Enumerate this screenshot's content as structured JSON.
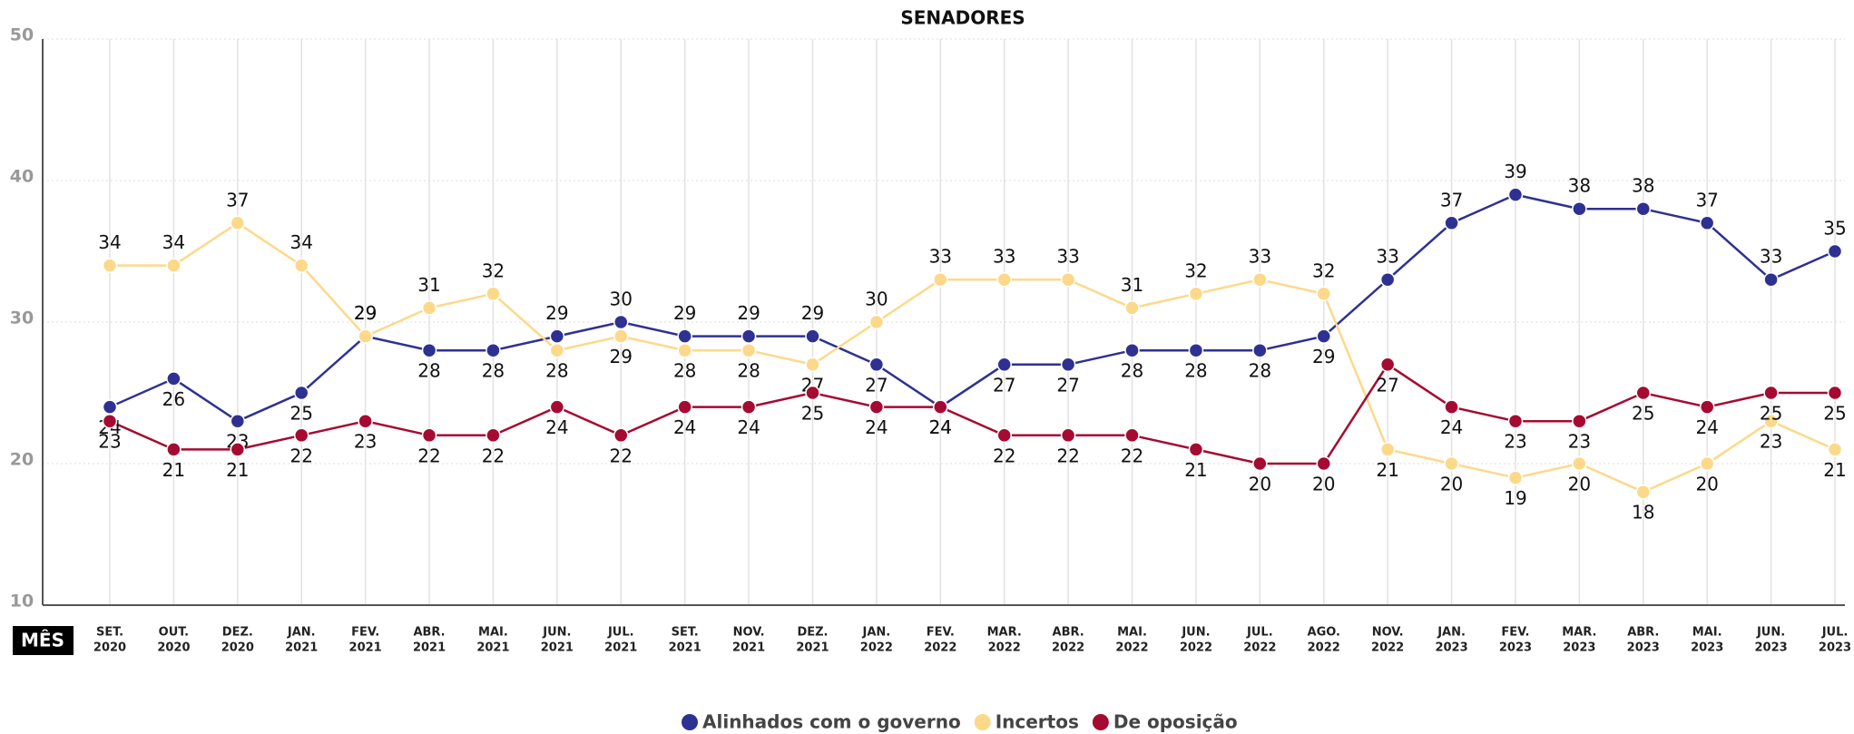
{
  "chart_data": {
    "type": "line",
    "title": "SENADORES",
    "x_label": "MÊS",
    "categories": [
      [
        "SET.",
        "2020"
      ],
      [
        "OUT.",
        "2020"
      ],
      [
        "DEZ.",
        "2020"
      ],
      [
        "JAN.",
        "2021"
      ],
      [
        "FEV.",
        "2021"
      ],
      [
        "ABR.",
        "2021"
      ],
      [
        "MAI.",
        "2021"
      ],
      [
        "JUN.",
        "2021"
      ],
      [
        "JUL.",
        "2021"
      ],
      [
        "SET.",
        "2021"
      ],
      [
        "NOV.",
        "2021"
      ],
      [
        "DEZ.",
        "2021"
      ],
      [
        "JAN.",
        "2022"
      ],
      [
        "FEV.",
        "2022"
      ],
      [
        "MAR.",
        "2022"
      ],
      [
        "ABR.",
        "2022"
      ],
      [
        "MAI.",
        "2022"
      ],
      [
        "JUN.",
        "2022"
      ],
      [
        "JUL.",
        "2022"
      ],
      [
        "AGO.",
        "2022"
      ],
      [
        "NOV.",
        "2022"
      ],
      [
        "JAN.",
        "2023"
      ],
      [
        "FEV.",
        "2023"
      ],
      [
        "MAR.",
        "2023"
      ],
      [
        "ABR.",
        "2023"
      ],
      [
        "MAI.",
        "2023"
      ],
      [
        "JUN.",
        "2023"
      ],
      [
        "JUL.",
        "2023"
      ]
    ],
    "series": [
      {
        "name": "Alinhados com o governo",
        "color": "#2e3192",
        "values": [
          24,
          26,
          23,
          25,
          29,
          28,
          28,
          29,
          30,
          29,
          29,
          29,
          27,
          24,
          27,
          27,
          28,
          28,
          28,
          29,
          33,
          37,
          39,
          38,
          38,
          37,
          33,
          35
        ]
      },
      {
        "name": "Incertos",
        "color": "#fcd98a",
        "values": [
          34,
          34,
          37,
          34,
          29,
          31,
          32,
          28,
          29,
          28,
          28,
          27,
          30,
          33,
          33,
          33,
          31,
          32,
          33,
          32,
          21,
          20,
          19,
          20,
          18,
          20,
          23,
          21
        ]
      },
      {
        "name": "De oposição",
        "color": "#a50a32",
        "values": [
          23,
          21,
          21,
          22,
          23,
          22,
          22,
          24,
          22,
          24,
          24,
          25,
          24,
          24,
          22,
          22,
          22,
          21,
          20,
          20,
          27,
          24,
          23,
          23,
          25,
          24,
          25,
          25
        ]
      }
    ],
    "ylim": [
      10,
      50
    ],
    "yticks": [
      10,
      20,
      30,
      40,
      50
    ],
    "grid": true,
    "legend": "bottom"
  }
}
